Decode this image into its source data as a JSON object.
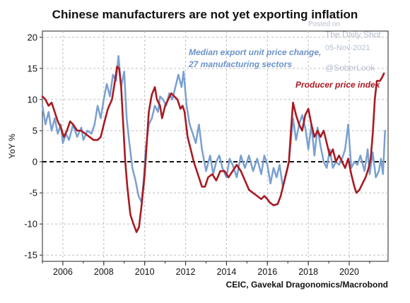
{
  "title": "Chinese manufacturers are not yet exporting inflation",
  "watermark": {
    "line1": "Posted on",
    "line2": "The Daily Shot",
    "line3": "05-Nov-2021",
    "line4": "@SoberLook"
  },
  "source": "CEIC, Gavekal Dragonomics/Macrobond",
  "colors": {
    "blue": "#7aa0d0",
    "red": "#a81a22",
    "zero_line": "#111111",
    "grid": "#bdbdbd"
  },
  "chart_data": {
    "type": "line",
    "title": "Chinese manufacturers are not yet exporting inflation",
    "xlabel": "",
    "ylabel": "YoY %",
    "xlim": [
      2005.0,
      2021.9
    ],
    "ylim": [
      -16,
      21
    ],
    "x_ticks": [
      "2006",
      "2008",
      "2010",
      "2012",
      "2014",
      "2016",
      "2018",
      "2020"
    ],
    "y_ticks": [
      "20",
      "15",
      "10",
      "5",
      "0",
      "-5",
      "-10",
      "-15"
    ],
    "grid": true,
    "zero_line": "dashed",
    "annotations": [
      {
        "text": "Median export unit price change,",
        "series": "Median export unit price change, 27 manufacturing sectors"
      },
      {
        "text": "27 manufacturing sectors",
        "series": "Median export unit price change, 27 manufacturing sectors"
      },
      {
        "text": "Producer price index",
        "series": "Producer price index"
      }
    ],
    "series": [
      {
        "name": "Median export unit price change, 27 manufacturing sectors",
        "color": "#7aa0d0",
        "points": [
          [
            2005.0,
            9
          ],
          [
            2005.15,
            6
          ],
          [
            2005.3,
            8
          ],
          [
            2005.45,
            5
          ],
          [
            2005.6,
            7
          ],
          [
            2005.75,
            4.5
          ],
          [
            2005.9,
            6
          ],
          [
            2006.0,
            3
          ],
          [
            2006.15,
            4.5
          ],
          [
            2006.3,
            3.5
          ],
          [
            2006.5,
            6
          ],
          [
            2006.7,
            4
          ],
          [
            2006.9,
            5.5
          ],
          [
            2007.0,
            3.5
          ],
          [
            2007.2,
            5
          ],
          [
            2007.4,
            4.5
          ],
          [
            2007.55,
            6
          ],
          [
            2007.7,
            9
          ],
          [
            2007.85,
            7
          ],
          [
            2008.0,
            10
          ],
          [
            2008.15,
            12.5
          ],
          [
            2008.3,
            10.5
          ],
          [
            2008.45,
            14
          ],
          [
            2008.6,
            13
          ],
          [
            2008.72,
            17
          ],
          [
            2008.85,
            12
          ],
          [
            2009.0,
            14.5
          ],
          [
            2009.12,
            7
          ],
          [
            2009.25,
            3
          ],
          [
            2009.4,
            -1
          ],
          [
            2009.55,
            -3
          ],
          [
            2009.7,
            -5.5
          ],
          [
            2009.85,
            -6.5
          ],
          [
            2009.95,
            -3
          ],
          [
            2010.05,
            2
          ],
          [
            2010.2,
            6
          ],
          [
            2010.35,
            7
          ],
          [
            2010.5,
            9
          ],
          [
            2010.65,
            8
          ],
          [
            2010.75,
            10.5
          ],
          [
            2010.9,
            10
          ],
          [
            2011.05,
            9
          ],
          [
            2011.2,
            11
          ],
          [
            2011.35,
            10
          ],
          [
            2011.5,
            12
          ],
          [
            2011.65,
            14
          ],
          [
            2011.8,
            12
          ],
          [
            2011.9,
            14.5
          ],
          [
            2012.05,
            9
          ],
          [
            2012.2,
            6
          ],
          [
            2012.35,
            4.5
          ],
          [
            2012.5,
            3
          ],
          [
            2012.65,
            6
          ],
          [
            2012.8,
            2
          ],
          [
            2013.0,
            -1.5
          ],
          [
            2013.2,
            1
          ],
          [
            2013.35,
            -2
          ],
          [
            2013.5,
            0
          ],
          [
            2013.65,
            1
          ],
          [
            2013.8,
            -1
          ],
          [
            2014.0,
            -2.5
          ],
          [
            2014.15,
            0.5
          ],
          [
            2014.3,
            -0.5
          ],
          [
            2014.5,
            -2.5
          ],
          [
            2014.7,
            1
          ],
          [
            2014.9,
            -1
          ],
          [
            2015.1,
            1
          ],
          [
            2015.3,
            -1.5
          ],
          [
            2015.5,
            0.5
          ],
          [
            2015.7,
            -2
          ],
          [
            2015.85,
            1
          ],
          [
            2016.0,
            -0.5
          ],
          [
            2016.15,
            -3.5
          ],
          [
            2016.3,
            -1
          ],
          [
            2016.45,
            -2.5
          ],
          [
            2016.6,
            -0.5
          ],
          [
            2016.75,
            -4
          ],
          [
            2016.9,
            -2
          ],
          [
            2017.05,
            0
          ],
          [
            2017.25,
            7
          ],
          [
            2017.4,
            3.5
          ],
          [
            2017.55,
            6
          ],
          [
            2017.7,
            7.5
          ],
          [
            2017.85,
            5.5
          ],
          [
            2018.0,
            2
          ],
          [
            2018.15,
            6
          ],
          [
            2018.3,
            1
          ],
          [
            2018.45,
            5.5
          ],
          [
            2018.6,
            2.5
          ],
          [
            2018.75,
            0
          ],
          [
            2018.9,
            -1
          ],
          [
            2019.05,
            2
          ],
          [
            2019.2,
            -1
          ],
          [
            2019.35,
            0
          ],
          [
            2019.5,
            -0.5
          ],
          [
            2019.65,
            0.5
          ],
          [
            2019.8,
            2
          ],
          [
            2019.95,
            6
          ],
          [
            2020.1,
            -1
          ],
          [
            2020.25,
            0
          ],
          [
            2020.4,
            -0.5
          ],
          [
            2020.55,
            1
          ],
          [
            2020.75,
            -1.5
          ],
          [
            2020.9,
            2
          ],
          [
            2021.0,
            -2
          ],
          [
            2021.15,
            1.5
          ],
          [
            2021.3,
            -2.5
          ],
          [
            2021.45,
            -1.5
          ],
          [
            2021.55,
            0.5
          ],
          [
            2021.65,
            -2
          ],
          [
            2021.75,
            5
          ]
        ]
      },
      {
        "name": "Producer price index",
        "color": "#a81a22",
        "points": [
          [
            2005.0,
            10.5
          ],
          [
            2005.15,
            10
          ],
          [
            2005.3,
            9
          ],
          [
            2005.45,
            9.5
          ],
          [
            2005.6,
            8
          ],
          [
            2005.75,
            6.5
          ],
          [
            2005.9,
            5.5
          ],
          [
            2006.05,
            4
          ],
          [
            2006.2,
            5
          ],
          [
            2006.35,
            6.5
          ],
          [
            2006.5,
            6
          ],
          [
            2006.7,
            5
          ],
          [
            2006.9,
            5
          ],
          [
            2007.1,
            4.5
          ],
          [
            2007.3,
            4
          ],
          [
            2007.5,
            3.5
          ],
          [
            2007.7,
            3.5
          ],
          [
            2007.85,
            4
          ],
          [
            2008.0,
            6
          ],
          [
            2008.2,
            8.5
          ],
          [
            2008.4,
            10
          ],
          [
            2008.55,
            13
          ],
          [
            2008.65,
            15.3
          ],
          [
            2008.75,
            15
          ],
          [
            2008.85,
            12
          ],
          [
            2008.95,
            6
          ],
          [
            2009.05,
            0
          ],
          [
            2009.15,
            -4
          ],
          [
            2009.3,
            -8.5
          ],
          [
            2009.45,
            -10
          ],
          [
            2009.6,
            -11.3
          ],
          [
            2009.72,
            -10.5
          ],
          [
            2009.85,
            -7
          ],
          [
            2010.0,
            -2
          ],
          [
            2010.1,
            3
          ],
          [
            2010.2,
            8
          ],
          [
            2010.35,
            10.8
          ],
          [
            2010.5,
            12
          ],
          [
            2010.6,
            10
          ],
          [
            2010.75,
            9
          ],
          [
            2010.85,
            7
          ],
          [
            2011.0,
            9
          ],
          [
            2011.15,
            10
          ],
          [
            2011.3,
            11
          ],
          [
            2011.45,
            10.5
          ],
          [
            2011.6,
            10
          ],
          [
            2011.75,
            8.5
          ],
          [
            2011.85,
            9
          ],
          [
            2011.95,
            8
          ],
          [
            2012.1,
            4
          ],
          [
            2012.25,
            2
          ],
          [
            2012.4,
            0
          ],
          [
            2012.6,
            -2
          ],
          [
            2012.8,
            -4
          ],
          [
            2012.95,
            -4
          ],
          [
            2013.1,
            -2.5
          ],
          [
            2013.3,
            -2
          ],
          [
            2013.5,
            -3
          ],
          [
            2013.7,
            -1.5
          ],
          [
            2013.9,
            -1.5
          ],
          [
            2014.1,
            -2.5
          ],
          [
            2014.3,
            -1.5
          ],
          [
            2014.5,
            -0.5
          ],
          [
            2014.7,
            -1.5
          ],
          [
            2014.9,
            -3
          ],
          [
            2015.1,
            -4.5
          ],
          [
            2015.3,
            -5
          ],
          [
            2015.5,
            -5.5
          ],
          [
            2015.7,
            -6
          ],
          [
            2015.85,
            -5.5
          ],
          [
            2016.0,
            -6
          ],
          [
            2016.1,
            -6.5
          ],
          [
            2016.3,
            -7
          ],
          [
            2016.5,
            -6.8
          ],
          [
            2016.65,
            -5.5
          ],
          [
            2016.8,
            -3.5
          ],
          [
            2016.95,
            -1.5
          ],
          [
            2017.05,
            0
          ],
          [
            2017.15,
            5
          ],
          [
            2017.25,
            9.5
          ],
          [
            2017.4,
            7.5
          ],
          [
            2017.55,
            6
          ],
          [
            2017.7,
            5
          ],
          [
            2017.85,
            7.5
          ],
          [
            2018.0,
            8.5
          ],
          [
            2018.15,
            6
          ],
          [
            2018.3,
            4
          ],
          [
            2018.45,
            5
          ],
          [
            2018.6,
            4
          ],
          [
            2018.75,
            5
          ],
          [
            2018.9,
            3
          ],
          [
            2019.05,
            1
          ],
          [
            2019.2,
            2
          ],
          [
            2019.35,
            0
          ],
          [
            2019.5,
            1
          ],
          [
            2019.65,
            0
          ],
          [
            2019.8,
            -1
          ],
          [
            2019.95,
            0.5
          ],
          [
            2020.1,
            -2
          ],
          [
            2020.25,
            -4
          ],
          [
            2020.35,
            -5
          ],
          [
            2020.5,
            -4.5
          ],
          [
            2020.65,
            -3.5
          ],
          [
            2020.8,
            -2.5
          ],
          [
            2020.95,
            -1
          ],
          [
            2021.05,
            0.5
          ],
          [
            2021.15,
            4.5
          ],
          [
            2021.25,
            10
          ],
          [
            2021.35,
            13
          ],
          [
            2021.5,
            13
          ],
          [
            2021.6,
            13.5
          ],
          [
            2021.7,
            14.2
          ]
        ]
      }
    ]
  }
}
